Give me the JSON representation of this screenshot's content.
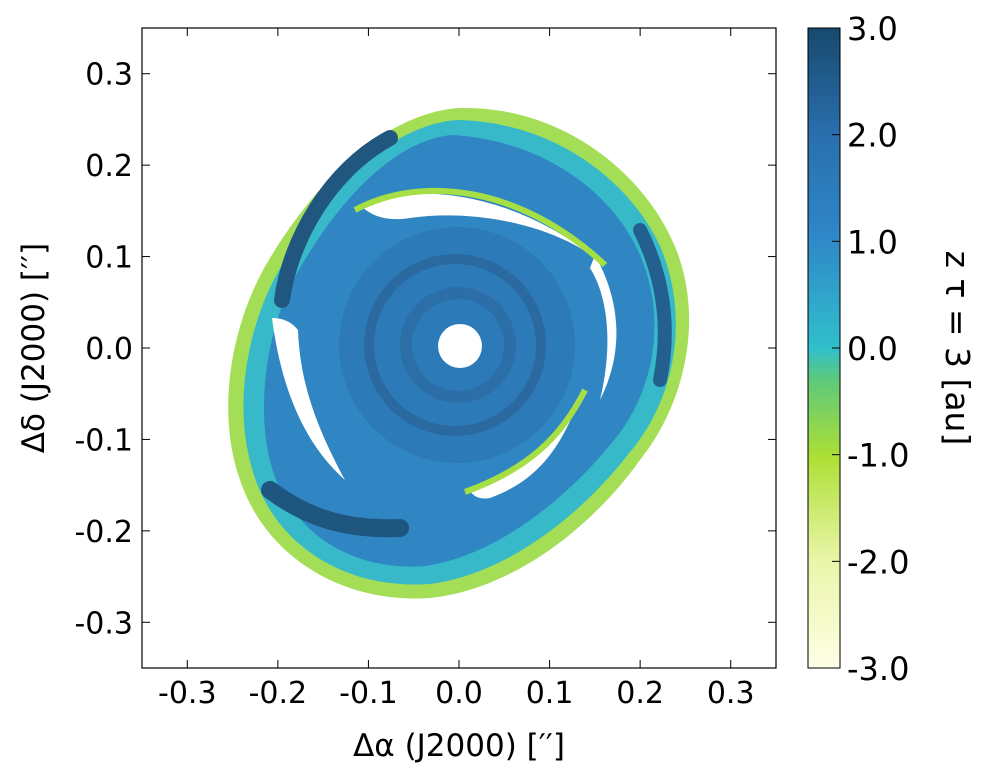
{
  "chart_data": {
    "type": "heatmap",
    "xlabel": "Δα (J2000) [′′]",
    "ylabel": "Δδ (J2000) [′′]",
    "xlim": [
      -0.35,
      0.35
    ],
    "ylim": [
      -0.35,
      0.35
    ],
    "x_ticks": [
      -0.3,
      -0.2,
      -0.1,
      0.0,
      0.1,
      0.2,
      0.3
    ],
    "x_tick_labels": [
      "-0.3",
      "-0.2",
      "-0.1",
      "0.0",
      "0.1",
      "0.2",
      "0.3"
    ],
    "y_ticks": [
      -0.3,
      -0.2,
      -0.1,
      0.0,
      0.1,
      0.2,
      0.3
    ],
    "y_tick_labels": [
      "-0.3",
      "-0.2",
      "-0.1",
      "0.0",
      "0.1",
      "0.2",
      "0.3"
    ],
    "grid": false,
    "colorbar": {
      "label": "z τ = 3 [au]",
      "range": [
        -3.0,
        3.0
      ],
      "ticks": [
        3.0,
        2.0,
        1.0,
        0.0,
        -1.0,
        -2.0,
        -3.0
      ],
      "tick_labels": [
        "3.0",
        "2.0",
        "1.0",
        "0.0",
        "-1.0",
        "-2.0",
        "-3.0"
      ],
      "colormap": [
        "#ffffe5",
        "#e9f5a8",
        "#addf35",
        "#5ec97a",
        "#30bfcb",
        "#2f88c8",
        "#2a6fae",
        "#174a6e"
      ]
    },
    "features": {
      "inner_hole_radius": 0.022,
      "inner_disk_radius": 0.13,
      "outer_extent_radius": 0.26,
      "spiral_arms": 4
    }
  }
}
